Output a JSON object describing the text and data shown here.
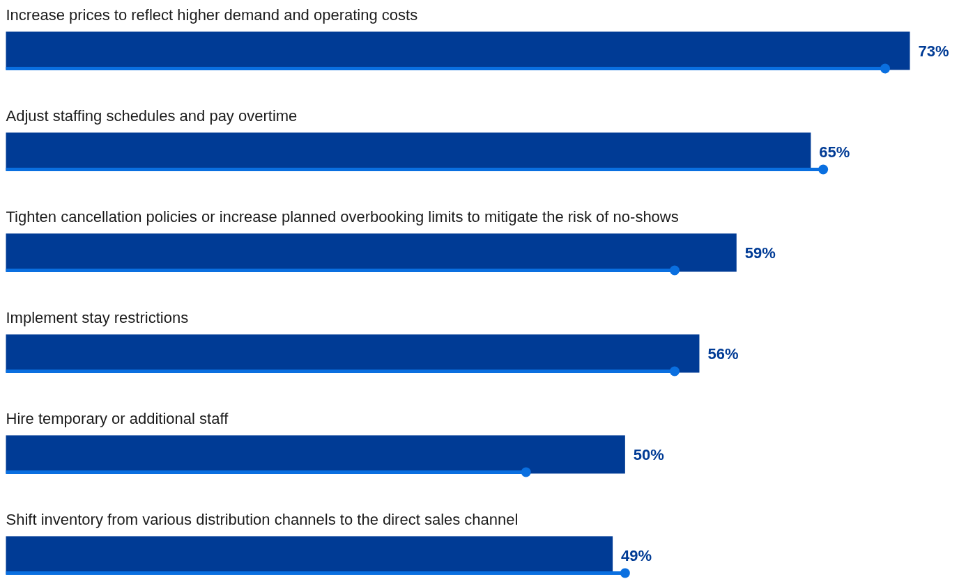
{
  "chart_data": {
    "type": "bar",
    "orientation": "horizontal",
    "categories": [
      "Increase prices to reflect higher demand and operating costs",
      "Adjust staffing schedules and pay overtime",
      "Tighten cancellation policies or increase planned overbooking limits to mitigate the risk of no-shows",
      "Implement stay restrictions",
      "Hire temporary or additional staff",
      "Shift inventory from various distribution channels to the direct sales channel"
    ],
    "series": [
      {
        "color": "#003b95",
        "values": [
          73,
          65,
          59,
          56,
          50,
          49
        ],
        "value_labels": [
          "73%",
          "65%",
          "59%",
          "56%",
          "50%",
          "49%"
        ]
      },
      {
        "type": "lollipop",
        "color": "#0a6fe0",
        "values": [
          71,
          66,
          54,
          54,
          42,
          50
        ]
      }
    ]
  }
}
